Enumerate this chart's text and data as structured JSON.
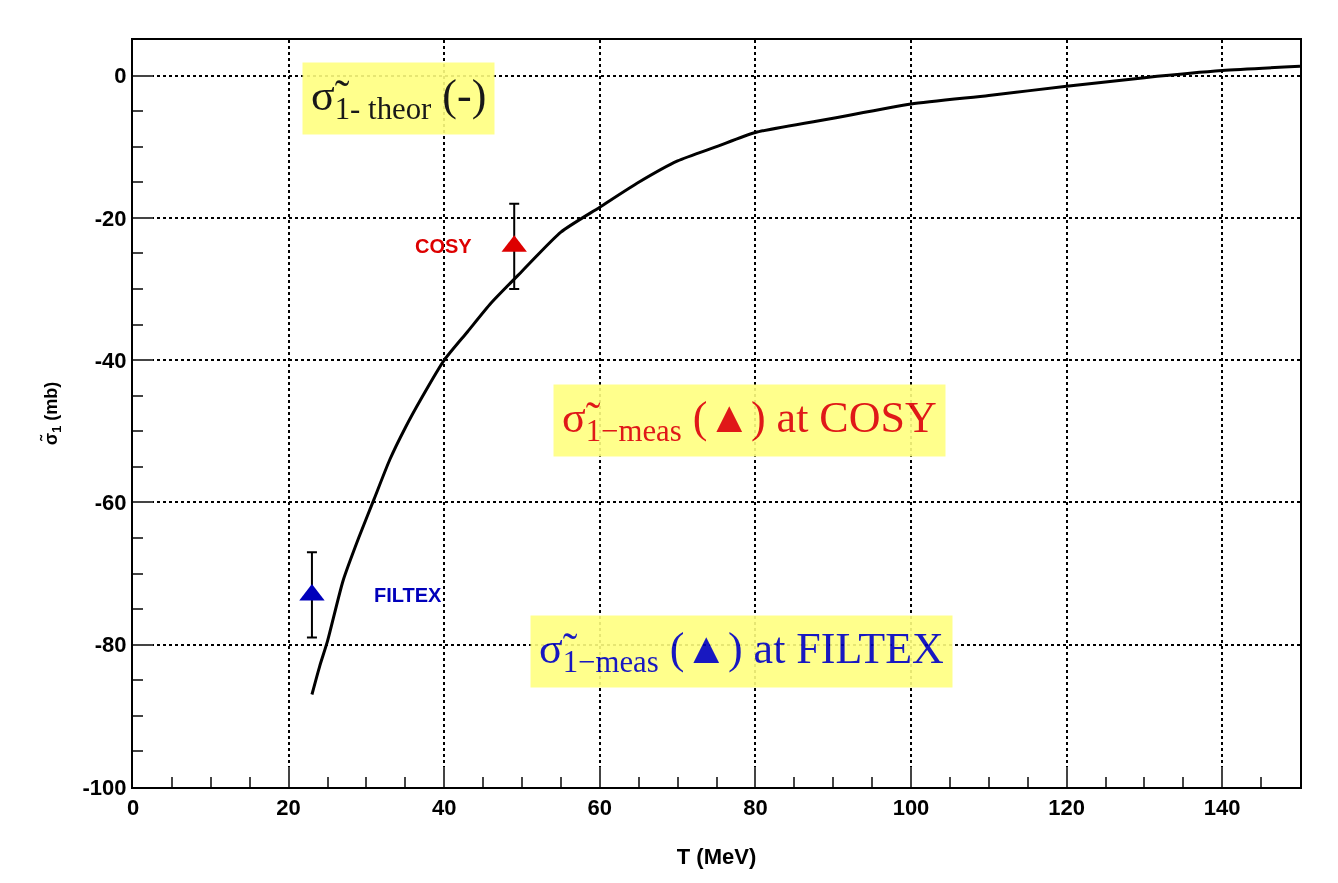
{
  "chart_data": {
    "type": "scatter",
    "xlabel": "T (MeV)",
    "ylabel": "σ̃$_{1}$ (mb)",
    "xlim": [
      0,
      150
    ],
    "xticks": [
      0,
      20,
      40,
      60,
      80,
      100,
      120,
      140
    ],
    "ylim": [
      -100,
      5
    ],
    "yticks": [
      -100,
      -80,
      -60,
      -40,
      -20,
      0
    ],
    "grid": true,
    "line_style": "solid",
    "series": [
      {
        "name": "σ̃$_{1- theor}$ (-)",
        "type": "line",
        "marker": "none",
        "color": "#000000",
        "x": [
          23,
          24,
          25,
          27,
          29,
          31,
          33,
          35,
          37,
          40,
          43,
          46,
          50,
          55,
          60,
          65,
          70,
          75,
          80,
          90,
          100,
          110,
          120,
          130,
          140,
          150
        ],
        "values": [
          -87,
          -83,
          -79.5,
          -71,
          -65,
          -59.5,
          -54,
          -49.5,
          -45.5,
          -40,
          -36,
          -32,
          -27.5,
          -22,
          -18.5,
          -15,
          -12,
          -10,
          -8,
          -6,
          -4,
          -2.8,
          -1.5,
          -0.3,
          0.7,
          1.3
        ]
      },
      {
        "name": "σ̃$_{1−meas}$ (▲) at COSY",
        "marker": "triangle",
        "color": "#dd0000",
        "x": [
          49
        ],
        "values": [
          -24
        ],
        "errors": [
          6
        ]
      },
      {
        "name": "σ̃$_{1−meas}$ (▲) at FILTEX",
        "marker": "triangle",
        "color": "#0000bb",
        "x": [
          23
        ],
        "values": [
          -73
        ],
        "errors": [
          6
        ]
      }
    ],
    "annotations": [
      "COSY",
      "FILTEX"
    ]
  }
}
